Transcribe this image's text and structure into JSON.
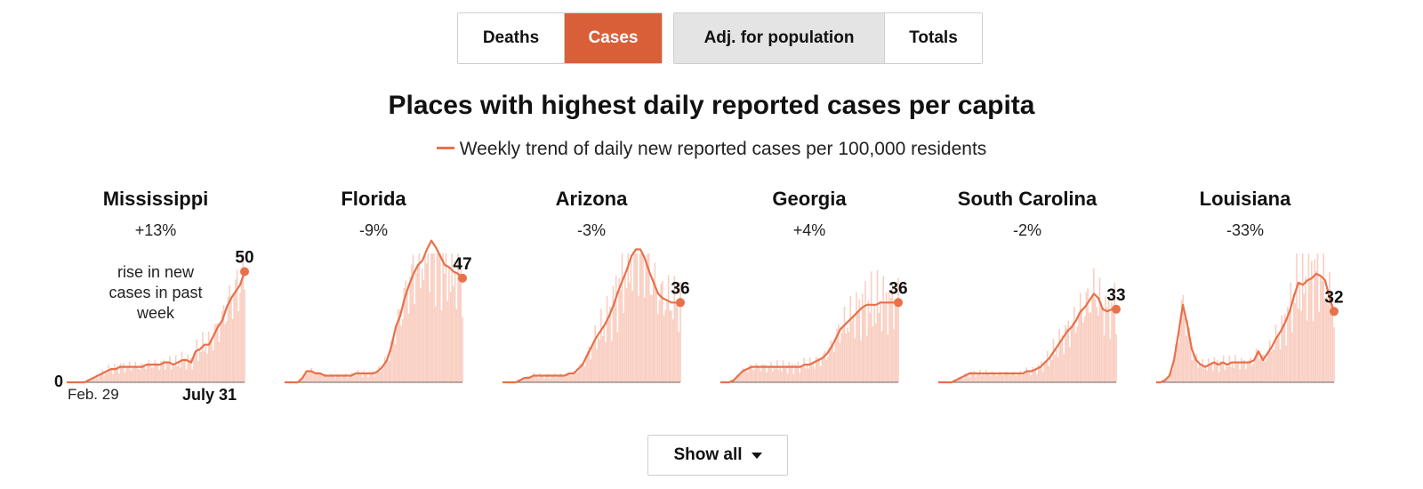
{
  "controls": {
    "metric_toggle": [
      {
        "label": "Deaths",
        "active": false
      },
      {
        "label": "Cases",
        "active": true
      }
    ],
    "mode_toggle": [
      {
        "label": "Adj. for population",
        "active": true
      },
      {
        "label": "Totals",
        "active": false
      }
    ],
    "show_all_label": "Show all",
    "accent_color": "#d95f38",
    "line_color": "#e8704a",
    "bar_color": "#f9cfc2"
  },
  "chart_data": {
    "type": "line",
    "title": "Places with highest daily reported cases per capita",
    "subtitle": "Weekly trend of daily new reported cases per 100,000 residents",
    "x_start_label": "Feb. 29",
    "x_end_label": "July 31",
    "y_zero_label": "0",
    "y_scale_max": 55,
    "note": "rise in new cases in past week",
    "panels": [
      {
        "state": "Mississippi",
        "change": "+13%",
        "latest": 50,
        "trend": [
          0,
          0,
          0,
          0,
          0,
          1,
          2,
          3,
          4,
          5,
          6,
          6,
          7,
          7,
          7,
          7,
          7,
          7,
          8,
          8,
          8,
          8,
          9,
          9,
          8,
          9,
          10,
          10,
          9,
          14,
          15,
          17,
          17,
          21,
          25,
          28,
          34,
          38,
          41,
          44,
          50
        ]
      },
      {
        "state": "Florida",
        "change": "-9%",
        "latest": 47,
        "trend": [
          0,
          0,
          0,
          0,
          2,
          5,
          5,
          4,
          4,
          3,
          3,
          3,
          3,
          3,
          3,
          3,
          4,
          4,
          4,
          4,
          4,
          5,
          7,
          10,
          16,
          25,
          30,
          38,
          44,
          49,
          53,
          55,
          60,
          64,
          61,
          57,
          53,
          52,
          50,
          49,
          47
        ]
      },
      {
        "state": "Arizona",
        "change": "-3%",
        "latest": 36,
        "trend": [
          0,
          0,
          0,
          0,
          1,
          2,
          2,
          3,
          3,
          3,
          3,
          3,
          3,
          3,
          3,
          4,
          4,
          6,
          8,
          12,
          16,
          20,
          23,
          26,
          30,
          35,
          41,
          46,
          51,
          57,
          60,
          60,
          56,
          50,
          45,
          40,
          38,
          37,
          36,
          36,
          36
        ]
      },
      {
        "state": "Georgia",
        "change": "+4%",
        "latest": 36,
        "trend": [
          0,
          0,
          0,
          1,
          3,
          5,
          6,
          7,
          7,
          7,
          7,
          7,
          7,
          7,
          7,
          7,
          7,
          7,
          7,
          8,
          8,
          9,
          10,
          11,
          13,
          16,
          20,
          24,
          26,
          28,
          30,
          32,
          34,
          35,
          35,
          35,
          36,
          36,
          36,
          36,
          36
        ]
      },
      {
        "state": "South Carolina",
        "change": "-2%",
        "latest": 33,
        "trend": [
          0,
          0,
          0,
          0,
          1,
          2,
          3,
          4,
          4,
          4,
          4,
          4,
          4,
          4,
          4,
          4,
          4,
          4,
          4,
          4,
          5,
          5,
          6,
          7,
          9,
          11,
          14,
          17,
          20,
          23,
          25,
          28,
          32,
          34,
          37,
          40,
          38,
          33,
          32,
          33,
          33
        ]
      },
      {
        "state": "Louisiana",
        "change": "-33%",
        "latest": 32,
        "trend": [
          0,
          0,
          1,
          3,
          10,
          22,
          35,
          26,
          15,
          10,
          8,
          7,
          8,
          9,
          8,
          9,
          8,
          9,
          9,
          9,
          9,
          9,
          10,
          14,
          10,
          13,
          16,
          20,
          23,
          27,
          32,
          39,
          45,
          44,
          46,
          47,
          49,
          48,
          46,
          38,
          32
        ]
      }
    ]
  }
}
